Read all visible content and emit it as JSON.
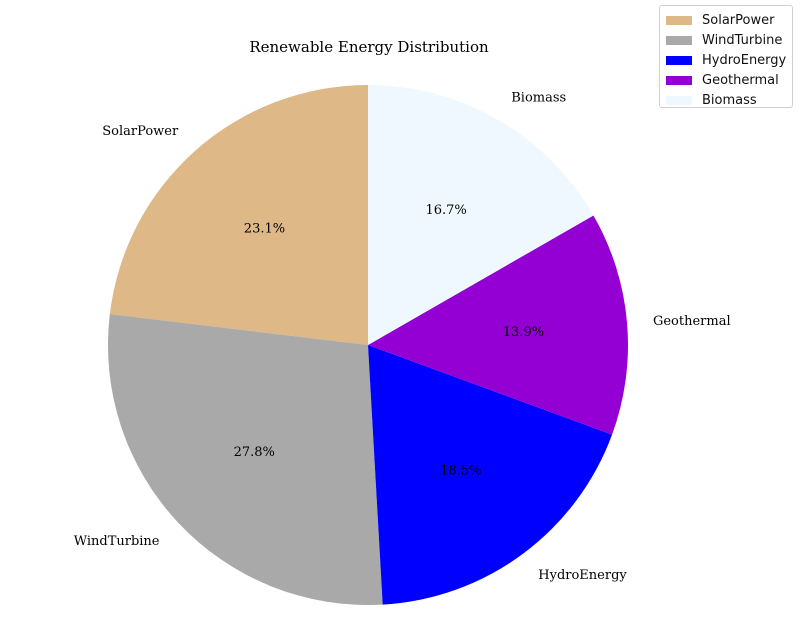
{
  "chart_data": {
    "type": "pie",
    "title": "Renewable Energy Distribution",
    "categories": [
      "SolarPower",
      "WindTurbine",
      "HydroEnergy",
      "Geothermal",
      "Biomass"
    ],
    "values": [
      23.1,
      27.8,
      18.5,
      13.9,
      16.7
    ],
    "percent_labels": [
      "23.1%",
      "27.8%",
      "18.5%",
      "13.9%",
      "16.7%"
    ],
    "colors": [
      "#deb887",
      "#a9a9a9",
      "#0000ff",
      "#9400d3",
      "#f0f8ff"
    ],
    "start_angle_deg": 90,
    "direction": "counterclockwise",
    "legend": {
      "placement": "top-right",
      "entries": [
        "SolarPower",
        "WindTurbine",
        "HydroEnergy",
        "Geothermal",
        "Biomass"
      ]
    }
  }
}
